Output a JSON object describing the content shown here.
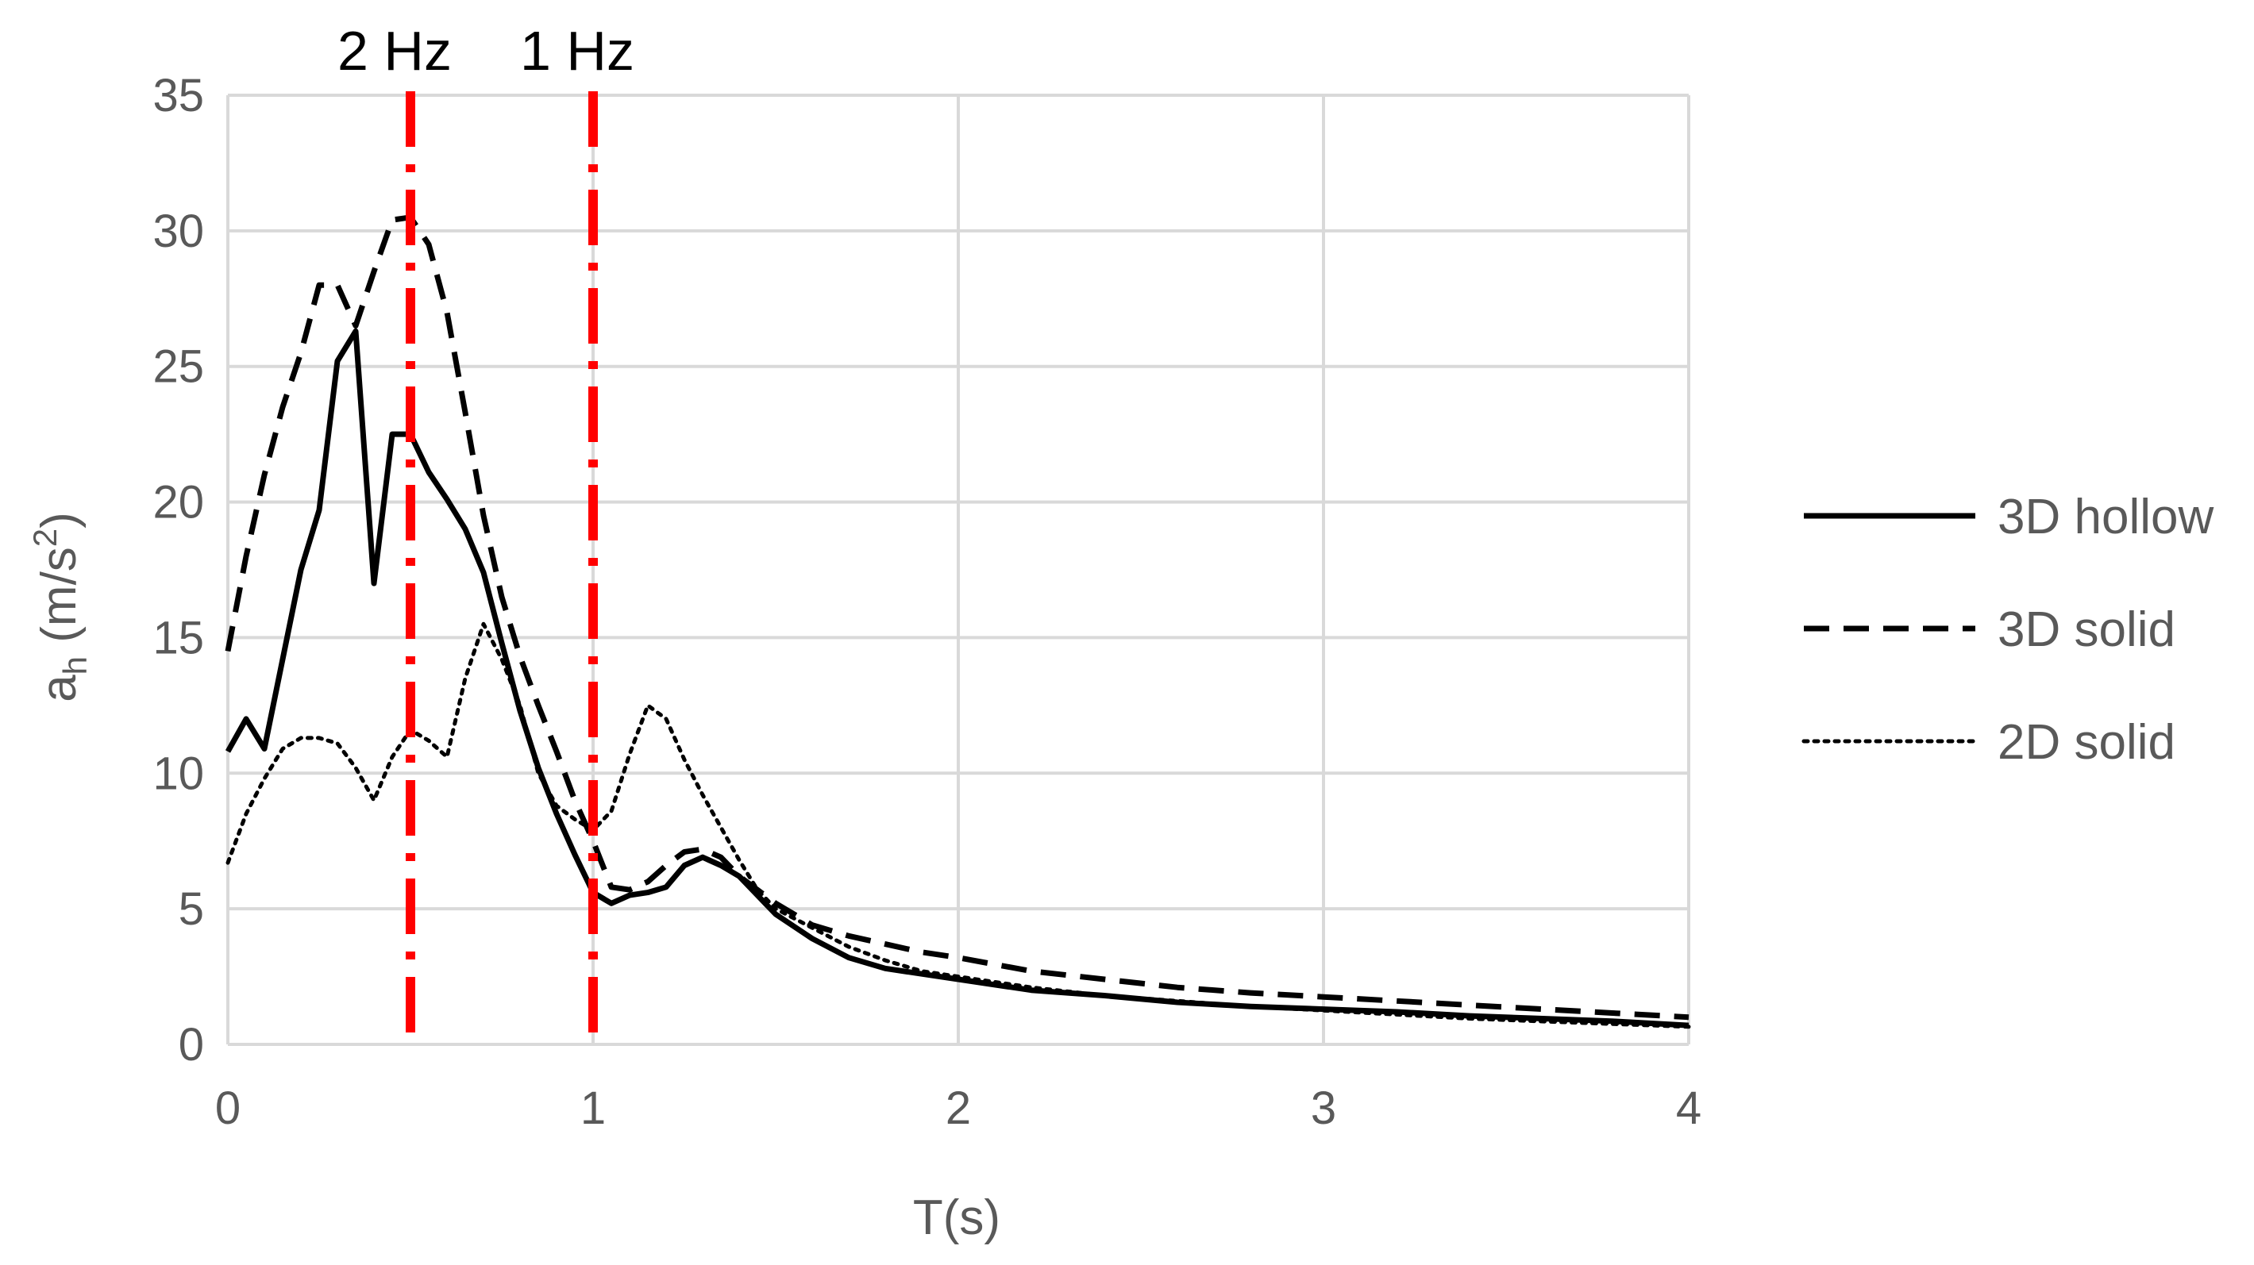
{
  "chart_data": {
    "type": "line",
    "xlabel": "T(s)",
    "ylabel": {
      "base": "a",
      "sub": "h",
      "unit_open": " (m/s",
      "sup": "2",
      "unit_close": ")"
    },
    "xlim": [
      0,
      4
    ],
    "ylim": [
      0,
      35
    ],
    "x_ticks": [
      0,
      1,
      2,
      3,
      4
    ],
    "y_ticks": [
      0,
      5,
      10,
      15,
      20,
      25,
      30,
      35
    ],
    "grid": true,
    "legend_position": "right",
    "markers": [
      {
        "x": 0.5,
        "label": "2 Hz",
        "color": "#ff0000"
      },
      {
        "x": 1.0,
        "label": "1 Hz",
        "color": "#ff0000"
      }
    ],
    "series": [
      {
        "name": "3D hollow",
        "style": "solid",
        "color": "#000000",
        "points": [
          [
            0,
            10.8
          ],
          [
            0.05,
            12
          ],
          [
            0.1,
            10.9
          ],
          [
            0.2,
            17.5
          ],
          [
            0.25,
            19.7
          ],
          [
            0.3,
            25.2
          ],
          [
            0.35,
            26.3
          ],
          [
            0.4,
            17
          ],
          [
            0.45,
            22.5
          ],
          [
            0.5,
            22.5
          ],
          [
            0.55,
            21.1
          ],
          [
            0.6,
            20.1
          ],
          [
            0.65,
            19
          ],
          [
            0.7,
            17.4
          ],
          [
            0.75,
            14.8
          ],
          [
            0.8,
            12.3
          ],
          [
            0.85,
            10.2
          ],
          [
            0.9,
            8.5
          ],
          [
            0.95,
            7
          ],
          [
            1,
            5.6
          ],
          [
            1.05,
            5.2
          ],
          [
            1.1,
            5.5
          ],
          [
            1.15,
            5.6
          ],
          [
            1.2,
            5.8
          ],
          [
            1.25,
            6.6
          ],
          [
            1.3,
            6.9
          ],
          [
            1.35,
            6.6
          ],
          [
            1.4,
            6.2
          ],
          [
            1.5,
            4.8
          ],
          [
            1.6,
            3.9
          ],
          [
            1.7,
            3.2
          ],
          [
            1.8,
            2.8
          ],
          [
            1.9,
            2.6
          ],
          [
            2,
            2.4
          ],
          [
            2.2,
            2
          ],
          [
            2.4,
            1.8
          ],
          [
            2.6,
            1.55
          ],
          [
            2.8,
            1.4
          ],
          [
            3,
            1.3
          ],
          [
            3.2,
            1.2
          ],
          [
            3.4,
            1.05
          ],
          [
            3.6,
            0.95
          ],
          [
            3.8,
            0.85
          ],
          [
            4,
            0.7
          ]
        ]
      },
      {
        "name": "3D solid",
        "style": "dashed",
        "color": "#000000",
        "points": [
          [
            0,
            14.5
          ],
          [
            0.05,
            18
          ],
          [
            0.1,
            21
          ],
          [
            0.15,
            23.5
          ],
          [
            0.2,
            25.5
          ],
          [
            0.25,
            28
          ],
          [
            0.3,
            28
          ],
          [
            0.35,
            26.5
          ],
          [
            0.4,
            28.5
          ],
          [
            0.45,
            30.4
          ],
          [
            0.5,
            30.5
          ],
          [
            0.55,
            29.5
          ],
          [
            0.6,
            27
          ],
          [
            0.65,
            23.3
          ],
          [
            0.7,
            19.5
          ],
          [
            0.75,
            16.5
          ],
          [
            0.8,
            14.3
          ],
          [
            0.85,
            12.5
          ],
          [
            0.9,
            10.8
          ],
          [
            0.95,
            9
          ],
          [
            1,
            7.5
          ],
          [
            1.05,
            5.8
          ],
          [
            1.1,
            5.7
          ],
          [
            1.15,
            6
          ],
          [
            1.2,
            6.6
          ],
          [
            1.25,
            7.1
          ],
          [
            1.3,
            7.2
          ],
          [
            1.35,
            6.9
          ],
          [
            1.4,
            6.2
          ],
          [
            1.5,
            5.2
          ],
          [
            1.6,
            4.4
          ],
          [
            1.7,
            4
          ],
          [
            1.8,
            3.7
          ],
          [
            1.9,
            3.4
          ],
          [
            2,
            3.2
          ],
          [
            2.2,
            2.7
          ],
          [
            2.4,
            2.4
          ],
          [
            2.6,
            2.1
          ],
          [
            2.8,
            1.9
          ],
          [
            3,
            1.75
          ],
          [
            3.2,
            1.6
          ],
          [
            3.4,
            1.45
          ],
          [
            3.6,
            1.3
          ],
          [
            3.8,
            1.15
          ],
          [
            4,
            1
          ]
        ]
      },
      {
        "name": "2D solid",
        "style": "dotted",
        "color": "#000000",
        "points": [
          [
            0,
            6.7
          ],
          [
            0.05,
            8.5
          ],
          [
            0.1,
            9.8
          ],
          [
            0.15,
            10.9
          ],
          [
            0.2,
            11.3
          ],
          [
            0.25,
            11.3
          ],
          [
            0.3,
            11.1
          ],
          [
            0.35,
            10.2
          ],
          [
            0.4,
            9
          ],
          [
            0.45,
            10.6
          ],
          [
            0.5,
            11.6
          ],
          [
            0.55,
            11.2
          ],
          [
            0.6,
            10.6
          ],
          [
            0.65,
            13.5
          ],
          [
            0.7,
            15.5
          ],
          [
            0.75,
            14.2
          ],
          [
            0.8,
            12.5
          ],
          [
            0.85,
            10
          ],
          [
            0.9,
            8.8
          ],
          [
            0.95,
            8.3
          ],
          [
            1,
            7.9
          ],
          [
            1.05,
            8.6
          ],
          [
            1.1,
            10.7
          ],
          [
            1.15,
            12.5
          ],
          [
            1.2,
            12
          ],
          [
            1.25,
            10.5
          ],
          [
            1.3,
            9.2
          ],
          [
            1.35,
            8
          ],
          [
            1.4,
            6.8
          ],
          [
            1.45,
            5.7
          ],
          [
            1.5,
            5
          ],
          [
            1.6,
            4.3
          ],
          [
            1.7,
            3.6
          ],
          [
            1.8,
            3.1
          ],
          [
            1.9,
            2.7
          ],
          [
            2,
            2.5
          ],
          [
            2.2,
            2.1
          ],
          [
            2.4,
            1.8
          ],
          [
            2.6,
            1.6
          ],
          [
            2.8,
            1.4
          ],
          [
            3,
            1.25
          ],
          [
            3.2,
            1.1
          ],
          [
            3.4,
            0.95
          ],
          [
            3.6,
            0.85
          ],
          [
            3.8,
            0.75
          ],
          [
            4,
            0.65
          ]
        ]
      }
    ]
  }
}
